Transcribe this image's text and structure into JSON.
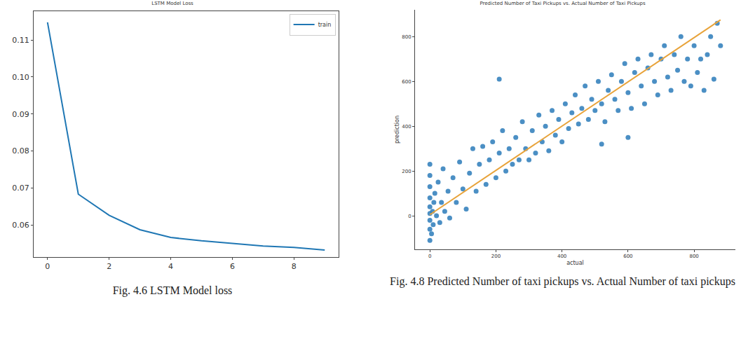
{
  "chart_data": [
    {
      "type": "line",
      "title": "LSTM Model Loss",
      "caption": "Fig. 4.6 LSTM Model loss",
      "x": [
        0,
        1,
        2,
        3,
        4,
        5,
        6,
        7,
        8,
        9
      ],
      "series": [
        {
          "name": "train",
          "color": "#1f77b4",
          "line_style": "solid",
          "values": [
            0.1148,
            0.0683,
            0.0626,
            0.0587,
            0.0566,
            0.0557,
            0.055,
            0.0543,
            0.0539,
            0.0532
          ]
        }
      ],
      "xlim": [
        -0.45,
        9.45
      ],
      "xticks": [
        0,
        2,
        4,
        6,
        8
      ],
      "ylim": [
        0.0513,
        0.1178
      ],
      "yticks": [
        0.06,
        0.07,
        0.08,
        0.09,
        {
          "value": 0.1,
          "label": "0.10"
        },
        0.11
      ],
      "grid": false,
      "legend": "upper right"
    },
    {
      "type": "scatter",
      "title": "Predicted Number of Taxi Pickups vs. Actual Number of Taxi Pickups",
      "caption": "Fig. 4.8 Predicted Number of taxi pickups vs. Actual Number of taxi pickups",
      "x_label": "actual",
      "y_label": "prediction",
      "series": [
        {
          "type": "scatter",
          "color": "#2b7bba",
          "marker": "circle",
          "x": [
            0,
            0,
            0,
            0,
            0,
            0,
            0,
            0,
            0,
            5,
            8,
            10,
            12,
            15,
            20,
            25,
            30,
            35,
            40,
            45,
            55,
            60,
            70,
            80,
            90,
            100,
            110,
            120,
            130,
            140,
            150,
            160,
            170,
            180,
            190,
            200,
            210,
            210,
            220,
            230,
            240,
            250,
            260,
            270,
            280,
            290,
            300,
            310,
            320,
            330,
            340,
            350,
            360,
            370,
            380,
            390,
            400,
            410,
            420,
            430,
            440,
            450,
            460,
            470,
            480,
            490,
            500,
            510,
            520,
            520,
            530,
            540,
            550,
            560,
            570,
            580,
            590,
            600,
            600,
            610,
            620,
            630,
            640,
            650,
            660,
            670,
            680,
            690,
            700,
            710,
            720,
            730,
            740,
            750,
            760,
            770,
            780,
            790,
            800,
            810,
            820,
            830,
            840,
            850,
            860,
            870,
            880
          ],
          "values": [
            -110,
            -60,
            -20,
            10,
            40,
            80,
            130,
            180,
            230,
            -80,
            20,
            -40,
            60,
            100,
            0,
            150,
            -30,
            60,
            210,
            20,
            110,
            -10,
            170,
            60,
            240,
            120,
            30,
            190,
            300,
            110,
            230,
            310,
            140,
            250,
            330,
            170,
            280,
            610,
            380,
            200,
            300,
            230,
            350,
            250,
            420,
            300,
            250,
            380,
            280,
            450,
            330,
            400,
            290,
            470,
            360,
            430,
            330,
            500,
            390,
            460,
            540,
            410,
            480,
            580,
            430,
            520,
            470,
            600,
            500,
            320,
            420,
            560,
            630,
            520,
            470,
            600,
            680,
            550,
            350,
            480,
            640,
            700,
            580,
            500,
            660,
            720,
            600,
            540,
            700,
            760,
            620,
            560,
            720,
            650,
            800,
            600,
            700,
            580,
            760,
            640,
            700,
            560,
            720,
            800,
            610,
            860,
            760
          ]
        },
        {
          "type": "line",
          "color": "#e8a33a",
          "line_style": "solid",
          "x": [
            0,
            880
          ],
          "values": [
            5,
            875
          ]
        }
      ],
      "xlim": [
        -45,
        925
      ],
      "xticks": [
        0,
        200,
        400,
        600,
        800
      ],
      "ylim": [
        -150,
        920
      ],
      "yticks": [
        0,
        200,
        400,
        600,
        800
      ],
      "grid": false
    }
  ]
}
